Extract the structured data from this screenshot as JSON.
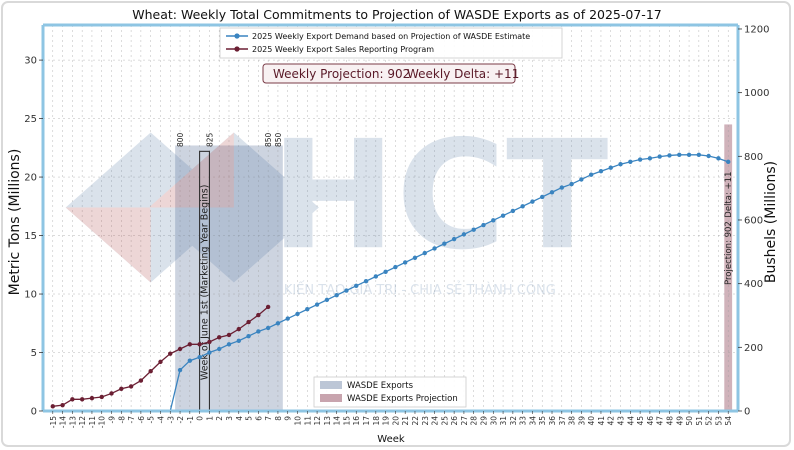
{
  "chart_data": {
    "type": "line",
    "title": "Wheat: Weekly Total Commitments to Projection of WASDE Exports as of 2025-07-17",
    "xlabel": "Week",
    "ylabel": "Metric Tons (Millions)",
    "ylabel_right": "Bushels (Millions)",
    "x_range": [
      -15,
      54
    ],
    "ylim": [
      0,
      33
    ],
    "ylim_right": [
      0,
      1212.5
    ],
    "yticks": [
      0,
      5,
      10,
      15,
      20,
      25,
      30
    ],
    "yticks_right": [
      0,
      200,
      400,
      600,
      800,
      1000,
      1200
    ],
    "grid": true,
    "legend_position": "top-center",
    "info_box": {
      "projection_label": "Weekly Projection: 902",
      "delta_label": "Weekly Delta: +11"
    },
    "annotations": {
      "week_one_label": "Week of June 1st (Marketing Year Begins)",
      "projection_bar_label": "Projection: 902",
      "delta_bar_label": "Delta: +11",
      "bar_labels": [
        {
          "x": -2,
          "text": "800"
        },
        {
          "x": 1,
          "text": "825"
        },
        {
          "x": 7,
          "text": "850"
        },
        {
          "x": 8,
          "text": "850"
        }
      ]
    },
    "series": [
      {
        "name": "2025 Weekly Export Demand based on Projection of WASDE Estimate",
        "color": "#3a84c0",
        "x": [
          -2,
          -1,
          0,
          1,
          2,
          3,
          4,
          5,
          6,
          7,
          8,
          9,
          10,
          11,
          12,
          13,
          14,
          15,
          16,
          17,
          18,
          19,
          20,
          21,
          22,
          23,
          24,
          25,
          26,
          27,
          28,
          29,
          30,
          31,
          32,
          33,
          34,
          35,
          36,
          37,
          38,
          39,
          40,
          41,
          42,
          43,
          44,
          45,
          46,
          47,
          48,
          49,
          50,
          51,
          52,
          53,
          54
        ],
        "values": [
          3.5,
          4.3,
          4.6,
          5.0,
          5.3,
          5.7,
          6.0,
          6.4,
          6.8,
          7.1,
          7.5,
          7.9,
          8.3,
          8.7,
          9.1,
          9.5,
          9.9,
          10.3,
          10.7,
          11.1,
          11.5,
          11.9,
          12.3,
          12.7,
          13.1,
          13.5,
          13.9,
          14.3,
          14.7,
          15.1,
          15.5,
          15.9,
          16.3,
          16.7,
          17.1,
          17.5,
          17.9,
          18.3,
          18.7,
          19.1,
          19.4,
          19.8,
          20.2,
          20.5,
          20.8,
          21.1,
          21.3,
          21.5,
          21.6,
          21.75,
          21.85,
          21.9,
          21.9,
          21.9,
          21.8,
          21.6,
          21.3
        ]
      },
      {
        "name": "2025 Weekly Export Sales Reporting Program",
        "color": "#6b1f33",
        "x": [
          -15,
          -14,
          -13,
          -12,
          -11,
          -10,
          -9,
          -8,
          -7,
          -6,
          -5,
          -4,
          -3,
          -2,
          -1,
          0,
          1,
          2,
          3,
          4,
          5,
          6,
          7
        ],
        "values": [
          0.4,
          0.5,
          1.0,
          1.0,
          1.1,
          1.2,
          1.5,
          1.9,
          2.1,
          2.6,
          3.4,
          4.2,
          4.9,
          5.3,
          5.7,
          5.7,
          5.9,
          6.3,
          6.5,
          7.0,
          7.6,
          8.2,
          8.9
        ]
      }
    ],
    "bars": [
      {
        "name": "WASDE Exports",
        "color": "#bcc6d6",
        "x_start": -2.5,
        "x_end": 8.5,
        "value": 22.7
      },
      {
        "name": "WASDE Exports Projection",
        "color": "#c8a4ae",
        "x_start": 53.6,
        "x_end": 54.4,
        "value": 24.5
      }
    ],
    "watermark": {
      "text": "HCT",
      "tagline": "KIẾN TẠO GIÁ TRỊ - CHIA SẺ THÀNH CÔNG"
    }
  }
}
